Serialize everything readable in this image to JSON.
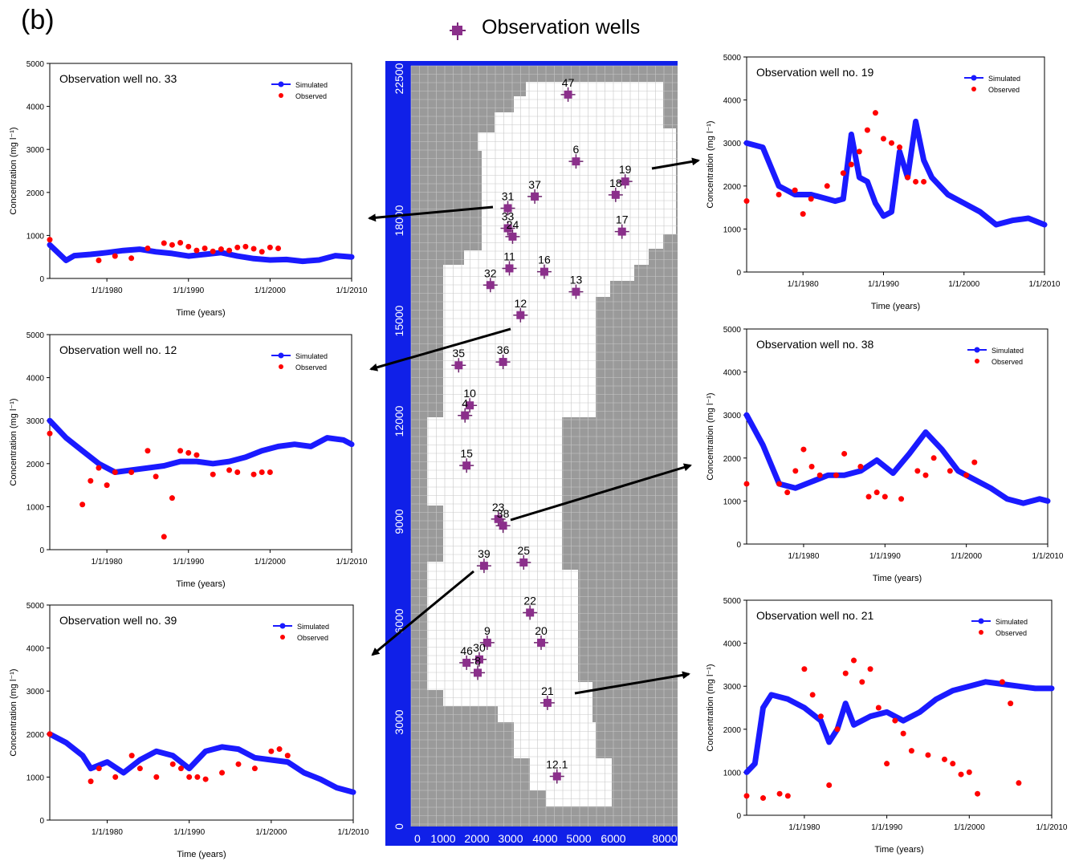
{
  "panel_label": "(b)",
  "map_legend": "Observation wells",
  "map": {
    "x_ticks": [
      "0",
      "1000",
      "2000",
      "3000",
      "4000",
      "5000",
      "6000",
      "8000"
    ],
    "y_ticks": [
      "0",
      "3000",
      "6000",
      "9000",
      "12000",
      "15000",
      "18000",
      "22500"
    ],
    "wells": [
      {
        "label": "47",
        "x": 4850,
        "y": 21900
      },
      {
        "label": "6",
        "x": 5100,
        "y": 19900
      },
      {
        "label": "19",
        "x": 6650,
        "y": 19300
      },
      {
        "label": "18",
        "x": 6350,
        "y": 18900
      },
      {
        "label": "37",
        "x": 3800,
        "y": 18850
      },
      {
        "label": "31",
        "x": 2950,
        "y": 18500
      },
      {
        "label": "17",
        "x": 6550,
        "y": 17800
      },
      {
        "label": "33",
        "x": 2950,
        "y": 17900
      },
      {
        "label": "24",
        "x": 3100,
        "y": 17650
      },
      {
        "label": "11",
        "x": 3000,
        "y": 16700
      },
      {
        "label": "16",
        "x": 4100,
        "y": 16600
      },
      {
        "label": "32",
        "x": 2400,
        "y": 16200
      },
      {
        "label": "13",
        "x": 5100,
        "y": 16000
      },
      {
        "label": "12",
        "x": 3350,
        "y": 15300
      },
      {
        "label": "35",
        "x": 1400,
        "y": 13800
      },
      {
        "label": "36",
        "x": 2800,
        "y": 13900
      },
      {
        "label": "10",
        "x": 1750,
        "y": 12600
      },
      {
        "label": "4",
        "x": 1600,
        "y": 12300
      },
      {
        "label": "15",
        "x": 1650,
        "y": 10800
      },
      {
        "label": "23",
        "x": 2650,
        "y": 9200
      },
      {
        "label": "38",
        "x": 2800,
        "y": 9000
      },
      {
        "label": "39",
        "x": 2200,
        "y": 7800
      },
      {
        "label": "25",
        "x": 3450,
        "y": 7900
      },
      {
        "label": "22",
        "x": 3650,
        "y": 6400
      },
      {
        "label": "9",
        "x": 2300,
        "y": 5500
      },
      {
        "label": "20",
        "x": 4000,
        "y": 5500
      },
      {
        "label": "46",
        "x": 1650,
        "y": 4900
      },
      {
        "label": "30",
        "x": 2050,
        "y": 5000
      },
      {
        "label": "8",
        "x": 2000,
        "y": 4600
      },
      {
        "label": "21",
        "x": 4200,
        "y": 3700
      },
      {
        "label": "12.1",
        "x": 4500,
        "y": 1500
      }
    ]
  },
  "chart_data": [
    {
      "type": "scatter",
      "title": "Observation well no. 33",
      "ylabel": "Concentration (mg l⁻¹)",
      "xlabel": "Time (years)",
      "ylim": [
        0,
        5000
      ],
      "yticks": [
        "0",
        "1000",
        "2000",
        "3000",
        "4000",
        "5000"
      ],
      "xticks": [
        "1/1/1980",
        "1/1/1990",
        "1/1/2000",
        "1/1/2010"
      ],
      "legend": [
        "Simulated",
        "Observed"
      ],
      "simulated": [
        [
          1973,
          780
        ],
        [
          1975,
          420
        ],
        [
          1976,
          530
        ],
        [
          1978,
          560
        ],
        [
          1980,
          600
        ],
        [
          1982,
          650
        ],
        [
          1984,
          680
        ],
        [
          1986,
          620
        ],
        [
          1988,
          580
        ],
        [
          1990,
          520
        ],
        [
          1992,
          560
        ],
        [
          1994,
          600
        ],
        [
          1996,
          520
        ],
        [
          1998,
          460
        ],
        [
          2000,
          430
        ],
        [
          2002,
          440
        ],
        [
          2004,
          400
        ],
        [
          2006,
          430
        ],
        [
          2008,
          530
        ],
        [
          2010,
          500
        ]
      ],
      "observed": [
        [
          1973,
          900
        ],
        [
          1979,
          420
        ],
        [
          1981,
          520
        ],
        [
          1983,
          470
        ],
        [
          1985,
          700
        ],
        [
          1987,
          820
        ],
        [
          1988,
          780
        ],
        [
          1989,
          830
        ],
        [
          1990,
          740
        ],
        [
          1991,
          650
        ],
        [
          1992,
          700
        ],
        [
          1993,
          630
        ],
        [
          1994,
          680
        ],
        [
          1995,
          650
        ],
        [
          1996,
          720
        ],
        [
          1997,
          740
        ],
        [
          1998,
          690
        ],
        [
          1999,
          620
        ],
        [
          2000,
          720
        ],
        [
          2001,
          700
        ]
      ]
    },
    {
      "type": "scatter",
      "title": "Observation well no. 12",
      "ylabel": "Concentration (mg l⁻¹)",
      "xlabel": "Time (years)",
      "ylim": [
        0,
        5000
      ],
      "yticks": [
        "0",
        "1000",
        "2000",
        "3000",
        "4000",
        "5000"
      ],
      "xticks": [
        "1/1/1980",
        "1/1/1990",
        "1/1/2000",
        "1/1/2010"
      ],
      "legend": [
        "Simulated",
        "Observed"
      ],
      "simulated": [
        [
          1973,
          3000
        ],
        [
          1975,
          2600
        ],
        [
          1977,
          2300
        ],
        [
          1979,
          2000
        ],
        [
          1981,
          1800
        ],
        [
          1983,
          1850
        ],
        [
          1985,
          1900
        ],
        [
          1987,
          1950
        ],
        [
          1989,
          2050
        ],
        [
          1991,
          2050
        ],
        [
          1993,
          2000
        ],
        [
          1995,
          2050
        ],
        [
          1997,
          2150
        ],
        [
          1999,
          2300
        ],
        [
          2001,
          2400
        ],
        [
          2003,
          2450
        ],
        [
          2005,
          2400
        ],
        [
          2007,
          2600
        ],
        [
          2009,
          2550
        ],
        [
          2010,
          2450
        ]
      ],
      "observed": [
        [
          1973,
          2700
        ],
        [
          1977,
          1050
        ],
        [
          1978,
          1600
        ],
        [
          1979,
          1900
        ],
        [
          1980,
          1500
        ],
        [
          1981,
          1800
        ],
        [
          1983,
          1800
        ],
        [
          1985,
          2300
        ],
        [
          1986,
          1700
        ],
        [
          1987,
          300
        ],
        [
          1988,
          1200
        ],
        [
          1989,
          2300
        ],
        [
          1990,
          2250
        ],
        [
          1991,
          2200
        ],
        [
          1993,
          1750
        ],
        [
          1995,
          1850
        ],
        [
          1996,
          1800
        ],
        [
          1998,
          1750
        ],
        [
          1999,
          1800
        ],
        [
          2000,
          1800
        ]
      ]
    },
    {
      "type": "scatter",
      "title": "Observation well no. 39",
      "ylabel": "Concentration (mg l⁻¹)",
      "xlabel": "Time (years)",
      "ylim": [
        0,
        5000
      ],
      "yticks": [
        "0",
        "1000",
        "2000",
        "3000",
        "4000",
        "5000"
      ],
      "xticks": [
        "1/1/1980",
        "1/1/1990",
        "1/1/2000",
        "1/1/2010"
      ],
      "legend": [
        "Simulated",
        "Observed"
      ],
      "simulated": [
        [
          1973,
          2000
        ],
        [
          1975,
          1800
        ],
        [
          1977,
          1500
        ],
        [
          1978,
          1200
        ],
        [
          1980,
          1350
        ],
        [
          1982,
          1100
        ],
        [
          1984,
          1400
        ],
        [
          1986,
          1600
        ],
        [
          1988,
          1500
        ],
        [
          1990,
          1200
        ],
        [
          1992,
          1600
        ],
        [
          1994,
          1700
        ],
        [
          1996,
          1650
        ],
        [
          1998,
          1450
        ],
        [
          2000,
          1400
        ],
        [
          2002,
          1350
        ],
        [
          2004,
          1100
        ],
        [
          2006,
          950
        ],
        [
          2008,
          750
        ],
        [
          2010,
          650
        ]
      ],
      "observed": [
        [
          1973,
          2000
        ],
        [
          1978,
          900
        ],
        [
          1979,
          1200
        ],
        [
          1981,
          1000
        ],
        [
          1983,
          1500
        ],
        [
          1984,
          1200
        ],
        [
          1986,
          1000
        ],
        [
          1988,
          1300
        ],
        [
          1989,
          1200
        ],
        [
          1990,
          1000
        ],
        [
          1991,
          1000
        ],
        [
          1992,
          950
        ],
        [
          1994,
          1100
        ],
        [
          1996,
          1300
        ],
        [
          1998,
          1200
        ],
        [
          2000,
          1600
        ],
        [
          2001,
          1650
        ],
        [
          2002,
          1500
        ]
      ]
    },
    {
      "type": "scatter",
      "title": "Observation well no. 19",
      "ylabel": "Concentration (mg l⁻¹)",
      "xlabel": "Time (years)",
      "ylim": [
        0,
        5000
      ],
      "yticks": [
        "0",
        "1000",
        "2000",
        "3000",
        "4000",
        "5000"
      ],
      "xticks": [
        "1/1/1980",
        "1/1/1990",
        "1/1/2000",
        "1/1/2010"
      ],
      "legend": [
        "Simulated",
        "Observed"
      ],
      "simulated": [
        [
          1973,
          3000
        ],
        [
          1975,
          2900
        ],
        [
          1977,
          2000
        ],
        [
          1979,
          1800
        ],
        [
          1981,
          1800
        ],
        [
          1983,
          1700
        ],
        [
          1984,
          1650
        ],
        [
          1985,
          1700
        ],
        [
          1986,
          3200
        ],
        [
          1987,
          2200
        ],
        [
          1988,
          2100
        ],
        [
          1989,
          1600
        ],
        [
          1990,
          1300
        ],
        [
          1991,
          1400
        ],
        [
          1992,
          2800
        ],
        [
          1993,
          2200
        ],
        [
          1994,
          3500
        ],
        [
          1995,
          2600
        ],
        [
          1996,
          2200
        ],
        [
          1998,
          1800
        ],
        [
          2000,
          1600
        ],
        [
          2002,
          1400
        ],
        [
          2004,
          1100
        ],
        [
          2006,
          1200
        ],
        [
          2008,
          1250
        ],
        [
          2010,
          1100
        ]
      ],
      "observed": [
        [
          1973,
          1650
        ],
        [
          1977,
          1800
        ],
        [
          1979,
          1900
        ],
        [
          1980,
          1350
        ],
        [
          1981,
          1700
        ],
        [
          1983,
          2000
        ],
        [
          1985,
          2300
        ],
        [
          1986,
          2500
        ],
        [
          1987,
          2800
        ],
        [
          1988,
          3300
        ],
        [
          1989,
          3700
        ],
        [
          1990,
          3100
        ],
        [
          1991,
          3000
        ],
        [
          1992,
          2900
        ],
        [
          1993,
          2200
        ],
        [
          1994,
          2100
        ],
        [
          1995,
          2100
        ]
      ]
    },
    {
      "type": "scatter",
      "title": "Observation well no. 38",
      "ylabel": "Concentration (mg l⁻¹)",
      "xlabel": "Time (years)",
      "ylim": [
        0,
        5000
      ],
      "yticks": [
        "0",
        "1000",
        "2000",
        "3000",
        "4000",
        "5000"
      ],
      "xticks": [
        "1/1/1980",
        "1/1/1990",
        "1/1/2000",
        "1/1/2010"
      ],
      "legend": [
        "Simulated",
        "Observed"
      ],
      "simulated": [
        [
          1973,
          3000
        ],
        [
          1975,
          2300
        ],
        [
          1977,
          1400
        ],
        [
          1979,
          1300
        ],
        [
          1981,
          1450
        ],
        [
          1983,
          1600
        ],
        [
          1985,
          1600
        ],
        [
          1987,
          1700
        ],
        [
          1989,
          1950
        ],
        [
          1991,
          1650
        ],
        [
          1993,
          2100
        ],
        [
          1995,
          2600
        ],
        [
          1997,
          2200
        ],
        [
          1999,
          1700
        ],
        [
          2001,
          1500
        ],
        [
          2003,
          1300
        ],
        [
          2005,
          1050
        ],
        [
          2007,
          950
        ],
        [
          2009,
          1050
        ],
        [
          2010,
          1000
        ]
      ],
      "observed": [
        [
          1973,
          1400
        ],
        [
          1977,
          1400
        ],
        [
          1978,
          1200
        ],
        [
          1979,
          1700
        ],
        [
          1980,
          2200
        ],
        [
          1981,
          1800
        ],
        [
          1982,
          1600
        ],
        [
          1984,
          1600
        ],
        [
          1985,
          2100
        ],
        [
          1987,
          1800
        ],
        [
          1988,
          1100
        ],
        [
          1989,
          1200
        ],
        [
          1990,
          1100
        ],
        [
          1992,
          1050
        ],
        [
          1994,
          1700
        ],
        [
          1995,
          1600
        ],
        [
          1996,
          2000
        ],
        [
          1998,
          1700
        ],
        [
          2000,
          1600
        ],
        [
          2001,
          1900
        ]
      ]
    },
    {
      "type": "scatter",
      "title": "Observation well no. 21",
      "ylabel": "Concentration (mg l⁻¹)",
      "xlabel": "Time (years)",
      "ylim": [
        0,
        5000
      ],
      "yticks": [
        "0",
        "1000",
        "2000",
        "3000",
        "4000",
        "5000"
      ],
      "xticks": [
        "1/1/1980",
        "1/1/1990",
        "1/1/2000",
        "1/1/2010"
      ],
      "legend": [
        "Simulated",
        "Observed"
      ],
      "simulated": [
        [
          1973,
          1000
        ],
        [
          1974,
          1200
        ],
        [
          1975,
          2500
        ],
        [
          1976,
          2800
        ],
        [
          1978,
          2700
        ],
        [
          1980,
          2500
        ],
        [
          1982,
          2200
        ],
        [
          1983,
          1700
        ],
        [
          1984,
          2000
        ],
        [
          1985,
          2600
        ],
        [
          1986,
          2100
        ],
        [
          1988,
          2300
        ],
        [
          1990,
          2400
        ],
        [
          1992,
          2200
        ],
        [
          1994,
          2400
        ],
        [
          1996,
          2700
        ],
        [
          1998,
          2900
        ],
        [
          2000,
          3000
        ],
        [
          2002,
          3100
        ],
        [
          2004,
          3050
        ],
        [
          2006,
          3000
        ],
        [
          2008,
          2950
        ],
        [
          2010,
          2950
        ]
      ],
      "observed": [
        [
          1973,
          450
        ],
        [
          1975,
          400
        ],
        [
          1977,
          500
        ],
        [
          1978,
          450
        ],
        [
          1980,
          3400
        ],
        [
          1981,
          2800
        ],
        [
          1982,
          2300
        ],
        [
          1983,
          700
        ],
        [
          1984,
          2000
        ],
        [
          1985,
          3300
        ],
        [
          1986,
          3600
        ],
        [
          1987,
          3100
        ],
        [
          1988,
          3400
        ],
        [
          1989,
          2500
        ],
        [
          1990,
          1200
        ],
        [
          1991,
          2200
        ],
        [
          1992,
          1900
        ],
        [
          1993,
          1500
        ],
        [
          1995,
          1400
        ],
        [
          1997,
          1300
        ],
        [
          1998,
          1200
        ],
        [
          1999,
          950
        ],
        [
          2000,
          1000
        ],
        [
          2001,
          500
        ],
        [
          2004,
          3100
        ],
        [
          2005,
          2600
        ],
        [
          2006,
          750
        ]
      ]
    }
  ]
}
